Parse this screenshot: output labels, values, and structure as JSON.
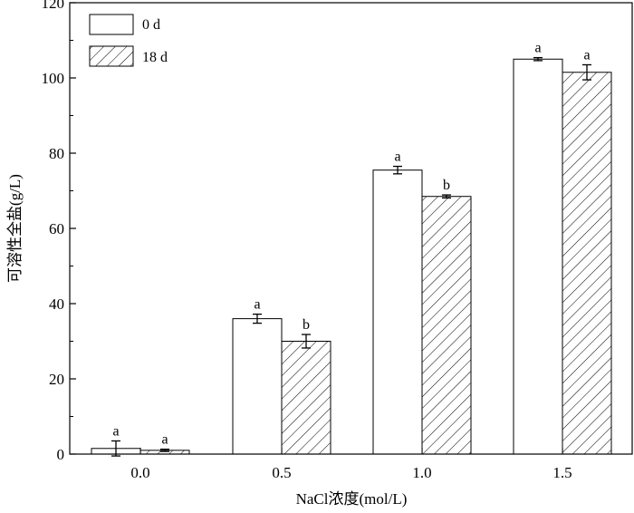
{
  "chart_data": {
    "type": "bar",
    "title": "",
    "xlabel": "NaCl浓度(mol/L)",
    "ylabel": "可溶性全盐(g/L)",
    "categories": [
      "0.0",
      "0.5",
      "1.0",
      "1.5"
    ],
    "ylim": [
      0,
      120
    ],
    "yticks": [
      "0",
      "20",
      "40",
      "60",
      "80",
      "100",
      "120"
    ],
    "grid": false,
    "legend_position": "top-left",
    "series": [
      {
        "name": "0 d",
        "fill": "white",
        "values": [
          1.5,
          36.0,
          75.5,
          105.0
        ],
        "errors": [
          2.0,
          1.2,
          1.0,
          0.4
        ],
        "labels": [
          "a",
          "a",
          "a",
          "a"
        ]
      },
      {
        "name": "18 d",
        "fill": "hatched",
        "values": [
          1.0,
          30.0,
          68.5,
          101.5
        ],
        "errors": [
          0.3,
          1.8,
          0.4,
          2.0
        ],
        "labels": [
          "a",
          "b",
          "b",
          "a"
        ]
      }
    ]
  },
  "colors": {
    "stroke": "#000000",
    "background": "#ffffff"
  }
}
